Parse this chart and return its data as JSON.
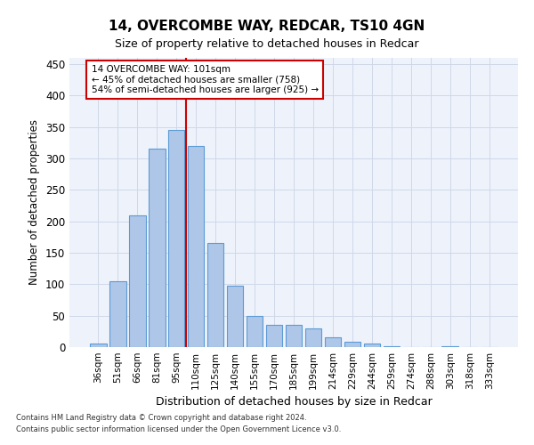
{
  "title1": "14, OVERCOMBE WAY, REDCAR, TS10 4GN",
  "title2": "Size of property relative to detached houses in Redcar",
  "xlabel": "Distribution of detached houses by size in Redcar",
  "ylabel": "Number of detached properties",
  "categories": [
    "36sqm",
    "51sqm",
    "66sqm",
    "81sqm",
    "95sqm",
    "110sqm",
    "125sqm",
    "140sqm",
    "155sqm",
    "170sqm",
    "185sqm",
    "199sqm",
    "214sqm",
    "229sqm",
    "244sqm",
    "259sqm",
    "274sqm",
    "288sqm",
    "303sqm",
    "318sqm",
    "333sqm"
  ],
  "values": [
    5,
    105,
    210,
    315,
    345,
    320,
    165,
    97,
    50,
    35,
    35,
    30,
    15,
    8,
    5,
    2,
    0,
    0,
    1,
    0,
    0
  ],
  "bar_color": "#aec6e8",
  "bar_edge_color": "#5b9bd5",
  "bar_width": 0.85,
  "vline_x": 4.5,
  "vline_color": "#cc0000",
  "annotation_line1": "14 OVERCOMBE WAY: 101sqm",
  "annotation_line2": "← 45% of detached houses are smaller (758)",
  "annotation_line3": "54% of semi-detached houses are larger (925) →",
  "annotation_box_color": "#ffffff",
  "annotation_box_edge": "#cc0000",
  "ylim": [
    0,
    460
  ],
  "yticks": [
    0,
    50,
    100,
    150,
    200,
    250,
    300,
    350,
    400,
    450
  ],
  "footer1": "Contains HM Land Registry data © Crown copyright and database right 2024.",
  "footer2": "Contains public sector information licensed under the Open Government Licence v3.0.",
  "grid_color": "#d0d8e8",
  "bg_color": "#eef2fb"
}
